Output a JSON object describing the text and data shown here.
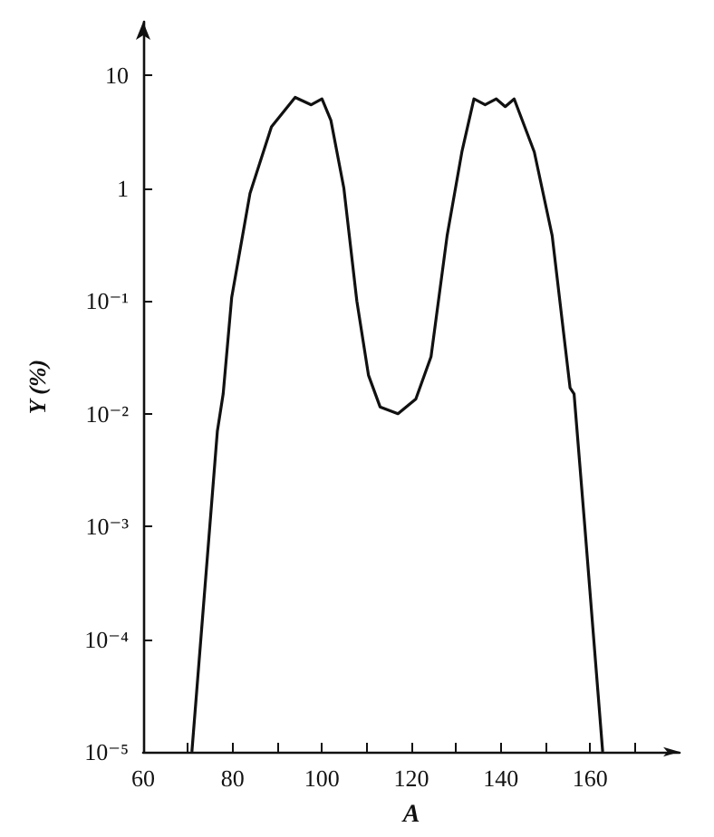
{
  "chart_data": {
    "type": "line",
    "xlabel": "A",
    "ylabel": "Y (%)",
    "log": "y",
    "marker": "none",
    "line_style": "solid",
    "xlim": [
      60,
      180
    ],
    "xticks": [
      60,
      {
        "value": 70,
        "label": null
      },
      80,
      {
        "value": 90,
        "label": null
      },
      100,
      {
        "value": 110,
        "label": null
      },
      120,
      {
        "value": 130,
        "label": null
      },
      140,
      {
        "value": 150,
        "label": null
      },
      160,
      {
        "value": 170,
        "label": null
      }
    ],
    "ylim": [
      1e-05,
      30
    ],
    "yticks": [
      {
        "value": 1e-05,
        "label": "10⁻⁵"
      },
      {
        "value": 0.0001,
        "label": "10⁻⁴"
      },
      {
        "value": 0.001,
        "label": "10⁻³"
      },
      {
        "value": 0.01,
        "label": "10⁻²"
      },
      {
        "value": 0.1,
        "label": "10⁻¹"
      },
      1,
      10
    ],
    "series": [
      {
        "color": "#111111",
        "x": [
          70.9,
          76.6,
          77.9,
          79.8,
          83.9,
          88.7,
          94,
          97.6,
          100,
          102,
          104.9,
          107.8,
          110.4,
          113,
          117,
          121,
          124.4,
          128,
          131.3,
          134,
          136.5,
          139,
          141,
          143,
          147.5,
          151.5,
          155.5,
          156.4,
          158.8,
          162.8
        ],
        "values": [
          1e-05,
          0.007,
          0.015,
          0.107,
          0.9,
          3.5,
          6.4,
          5.5,
          6.2,
          4,
          1,
          0.1,
          0.022,
          0.0115,
          0.01,
          0.0135,
          0.032,
          0.38,
          2.1,
          6.2,
          5.5,
          6.2,
          5.3,
          6.2,
          2.1,
          0.38,
          0.017,
          0.015,
          0.001,
          1e-05
        ]
      }
    ]
  }
}
